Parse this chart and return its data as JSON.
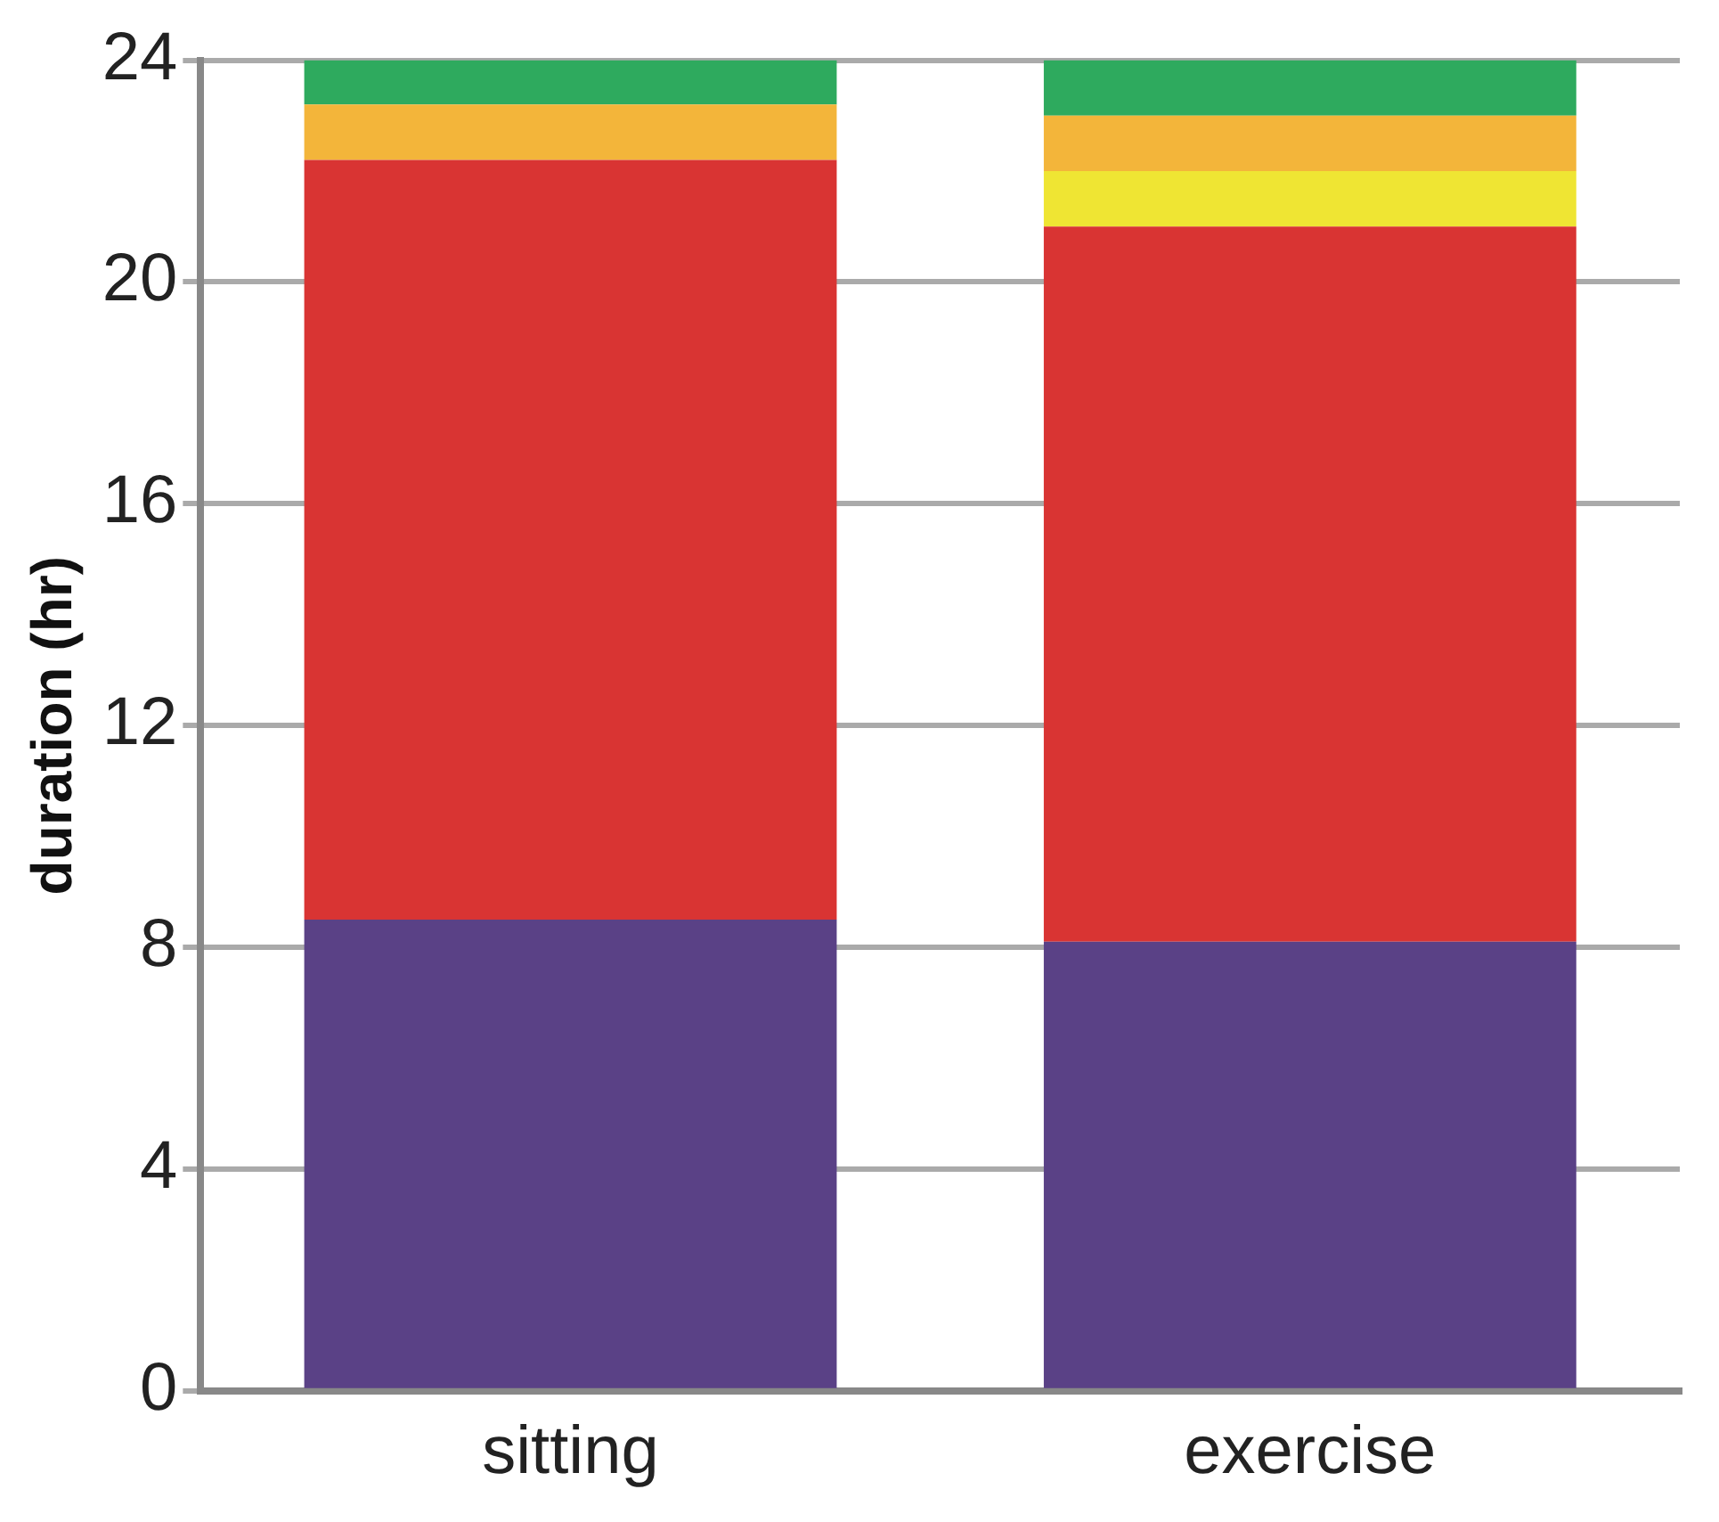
{
  "chart_data": {
    "type": "bar",
    "stacked": true,
    "ylabel": "duration (hr)",
    "categories": [
      "sitting",
      "exercise"
    ],
    "series": [
      {
        "color": "#5a4186",
        "values": [
          8.5,
          8.1
        ]
      },
      {
        "color": "#d93433",
        "values": [
          13.7,
          12.9
        ]
      },
      {
        "color": "#efe533",
        "values": [
          0,
          1.0
        ]
      },
      {
        "color": "#f3b53a",
        "values": [
          1.0,
          1.0
        ]
      },
      {
        "color": "#2eaa5e",
        "values": [
          0.8,
          1.0
        ]
      }
    ],
    "ylim": [
      0,
      24
    ],
    "yticks": [
      0,
      4,
      8,
      12,
      16,
      20,
      24
    ],
    "grid": "y",
    "legend": false
  }
}
